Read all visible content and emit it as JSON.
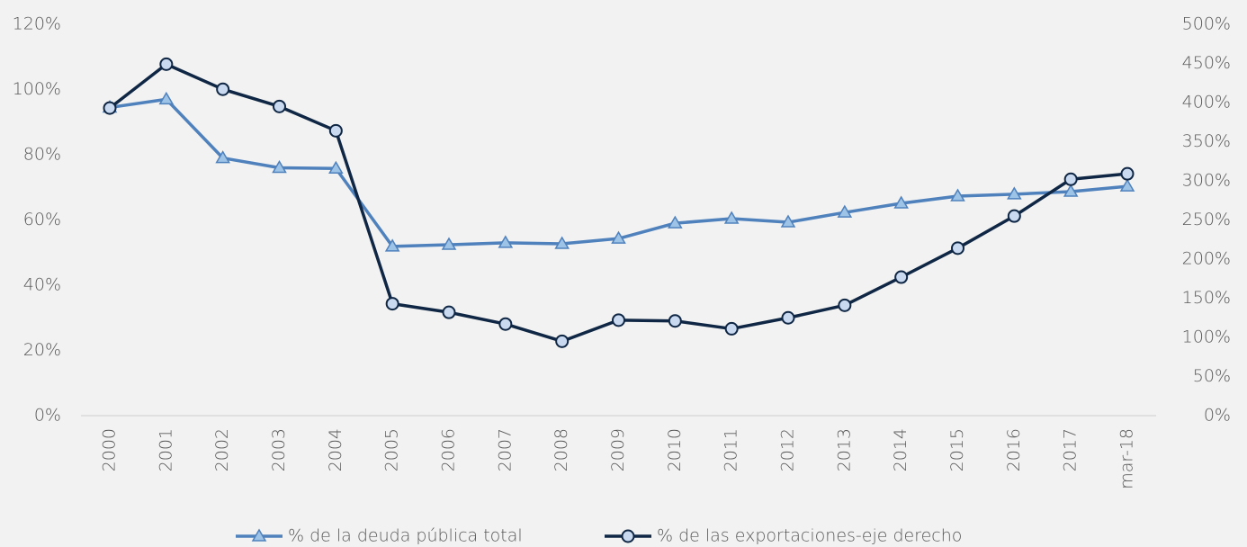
{
  "chart_data": {
    "type": "line",
    "categories": [
      "2000",
      "2001",
      "2002",
      "2003",
      "2004",
      "2005",
      "2006",
      "2007",
      "2008",
      "2009",
      "2010",
      "2011",
      "2012",
      "2013",
      "2014",
      "2015",
      "2016",
      "2017",
      "mar-18"
    ],
    "series": [
      {
        "name": "% de la deuda pública total",
        "color": "#4f81bd",
        "marker": "triangle",
        "axis": "y",
        "values": [
          94.5,
          97,
          79,
          76,
          75.8,
          51.9,
          52.4,
          53,
          52.7,
          54.3,
          59,
          60.4,
          59.3,
          62.3,
          65.1,
          67.3,
          67.9,
          68.7,
          70.3
        ]
      },
      {
        "name": "% de las exportaciones-eje derecho",
        "color": "#0f2744",
        "marker": "circle",
        "axis": "y2",
        "values": [
          393,
          449,
          417,
          395,
          364,
          143,
          132,
          117,
          95,
          122,
          121,
          111,
          125,
          141,
          177,
          214,
          255,
          302,
          309
        ]
      }
    ],
    "ylim": [
      0,
      120
    ],
    "yticks": [
      {
        "value": 0,
        "label": "0%"
      },
      {
        "value": 20,
        "label": "20%"
      },
      {
        "value": 40,
        "label": "40%"
      },
      {
        "value": 60,
        "label": "60%"
      },
      {
        "value": 80,
        "label": "80%"
      },
      {
        "value": 100,
        "label": "100%"
      },
      {
        "value": 120,
        "label": "120%"
      }
    ],
    "y2lim": [
      0,
      500
    ],
    "y2ticks": [
      {
        "value": 0,
        "label": "0%"
      },
      {
        "value": 50,
        "label": "50%"
      },
      {
        "value": 100,
        "label": "100%"
      },
      {
        "value": 150,
        "label": "150%"
      },
      {
        "value": 200,
        "label": "200%"
      },
      {
        "value": 250,
        "label": "250%"
      },
      {
        "value": 300,
        "label": "300%"
      },
      {
        "value": 350,
        "label": "350%"
      },
      {
        "value": 400,
        "label": "400%"
      },
      {
        "value": 450,
        "label": "450%"
      },
      {
        "value": 500,
        "label": "500%"
      }
    ],
    "grid": false,
    "legend": "bottom"
  }
}
